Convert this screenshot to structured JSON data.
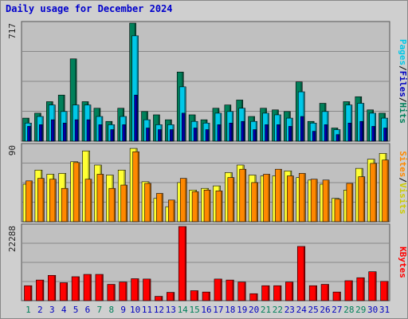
{
  "title": "Daily usage for December 2024",
  "colors": {
    "pages": "#0000c0",
    "files": "#00c8e8",
    "hits": "#00805a",
    "visits": "#ffff33",
    "sites": "#ff8800",
    "kbytes": "#ff0000",
    "weekend_day_label": "#00805a",
    "weekday_day_label": "#0000c0",
    "slash": "#000000"
  },
  "chart_data": [
    {
      "type": "bar",
      "name": "hits-files-pages",
      "categories": [
        "1",
        "2",
        "3",
        "4",
        "5",
        "6",
        "7",
        "8",
        "9",
        "10",
        "11",
        "12",
        "13",
        "14",
        "15",
        "16",
        "17",
        "18",
        "19",
        "20",
        "21",
        "22",
        "23",
        "24",
        "25",
        "26",
        "27",
        "28",
        "29",
        "30",
        "31"
      ],
      "weekend_days": [
        "1",
        "7",
        "8",
        "14",
        "15",
        "21",
        "22",
        "28",
        "29"
      ],
      "ymax": 717,
      "ytick_label": "717",
      "right_label": {
        "pages": "Pages",
        "files": "Files",
        "hits": "Hits",
        "separator": "/"
      },
      "series": [
        {
          "name": "Hits",
          "values": [
            140,
            170,
            240,
            280,
            500,
            240,
            200,
            120,
            200,
            717,
            180,
            160,
            130,
            420,
            160,
            130,
            200,
            220,
            250,
            150,
            200,
            190,
            180,
            360,
            120,
            230,
            80,
            240,
            270,
            190,
            170
          ]
        },
        {
          "name": "Files",
          "values": [
            110,
            150,
            220,
            180,
            220,
            220,
            150,
            100,
            150,
            640,
            130,
            100,
            100,
            330,
            120,
            110,
            170,
            180,
            200,
            120,
            170,
            160,
            140,
            300,
            110,
            180,
            70,
            220,
            230,
            170,
            140
          ]
        },
        {
          "name": "Pages",
          "values": [
            90,
            100,
            130,
            110,
            130,
            130,
            100,
            70,
            100,
            280,
            80,
            70,
            70,
            170,
            80,
            70,
            100,
            110,
            120,
            70,
            100,
            100,
            90,
            150,
            60,
            100,
            40,
            110,
            120,
            90,
            80
          ]
        }
      ]
    },
    {
      "type": "bar",
      "name": "visits-sites",
      "categories": [
        "1",
        "2",
        "3",
        "4",
        "5",
        "6",
        "7",
        "8",
        "9",
        "10",
        "11",
        "12",
        "13",
        "14",
        "15",
        "16",
        "17",
        "18",
        "19",
        "20",
        "21",
        "22",
        "23",
        "24",
        "25",
        "26",
        "27",
        "28",
        "29",
        "30",
        "31"
      ],
      "ymax": 90,
      "ytick_label": "90",
      "right_label": {
        "sites": "Sites",
        "visits": "Visits",
        "separator": "/"
      },
      "series": [
        {
          "name": "Visits",
          "values": [
            45,
            62,
            57,
            58,
            72,
            85,
            68,
            56,
            62,
            88,
            48,
            28,
            18,
            47,
            38,
            40,
            43,
            59,
            68,
            56,
            55,
            55,
            61,
            53,
            50,
            45,
            28,
            38,
            64,
            75,
            82
          ]
        },
        {
          "name": "Sites",
          "values": [
            49,
            52,
            51,
            40,
            71,
            51,
            57,
            40,
            44,
            84,
            46,
            34,
            26,
            52,
            36,
            38,
            37,
            53,
            63,
            47,
            57,
            63,
            55,
            58,
            51,
            50,
            27,
            46,
            54,
            70,
            74
          ]
        }
      ]
    },
    {
      "type": "bar",
      "name": "kbytes",
      "categories": [
        "1",
        "2",
        "3",
        "4",
        "5",
        "6",
        "7",
        "8",
        "9",
        "10",
        "11",
        "12",
        "13",
        "14",
        "15",
        "16",
        "17",
        "18",
        "19",
        "20",
        "21",
        "22",
        "23",
        "24",
        "25",
        "26",
        "27",
        "28",
        "29",
        "30",
        "31"
      ],
      "ymax": 22288,
      "ytick_label": "22288",
      "right_label": {
        "kbytes": "KBytes"
      },
      "series": [
        {
          "name": "KBytes",
          "values": [
            4500,
            6200,
            7600,
            5400,
            7200,
            7900,
            7900,
            4900,
            5600,
            6600,
            6500,
            1300,
            2500,
            22288,
            3000,
            2600,
            6500,
            6200,
            5600,
            2100,
            4500,
            4500,
            5600,
            16300,
            4500,
            4900,
            2600,
            6000,
            6900,
            8700,
            5800
          ]
        }
      ]
    }
  ]
}
